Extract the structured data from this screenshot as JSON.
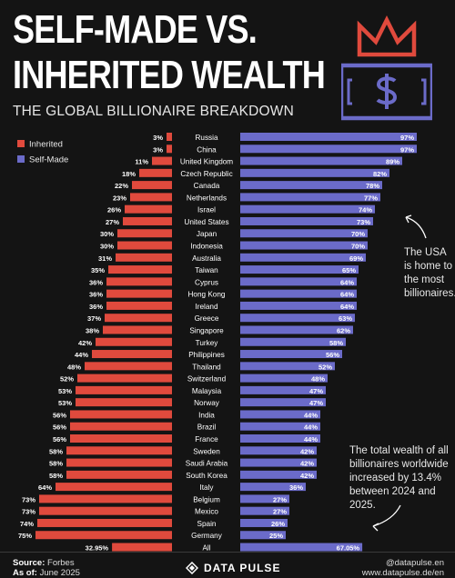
{
  "header": {
    "title_line1": "SELF-MADE VS.",
    "title_line2": "INHERITED WEALTH",
    "subtitle": "THE GLOBAL BILLIONAIRE BREAKDOWN",
    "logo_icon": "crown-dollar-bill-icon"
  },
  "chart_data": {
    "type": "bar",
    "orientation": "horizontal-diverging",
    "legend": {
      "position": "top-left",
      "entries": [
        "Inherited",
        "Self-Made"
      ]
    },
    "colors": {
      "Inherited": "#e04a3d",
      "Self-Made": "#6b6bc9"
    },
    "unit": "%",
    "xlim": [
      0,
      100
    ],
    "categories": [
      "Russia",
      "China",
      "United Kingdom",
      "Czech Republic",
      "Canada",
      "Netherlands",
      "Israel",
      "United States",
      "Japan",
      "Indonesia",
      "Australia",
      "Taiwan",
      "Cyprus",
      "Hong Kong",
      "Ireland",
      "Greece",
      "Singapore",
      "Turkey",
      "Philippines",
      "Thailand",
      "Switzerland",
      "Malaysia",
      "Norway",
      "India",
      "Brazil",
      "France",
      "Sweden",
      "Saudi Arabia",
      "South Korea",
      "Italy",
      "Belgium",
      "Mexico",
      "Spain",
      "Germany",
      "All"
    ],
    "series": [
      {
        "name": "Inherited",
        "values": [
          3,
          3,
          11,
          18,
          22,
          23,
          26,
          27,
          30,
          30,
          31,
          35,
          36,
          36,
          36,
          37,
          38,
          42,
          44,
          48,
          52,
          53,
          53,
          56,
          56,
          56,
          58,
          58,
          58,
          64,
          73,
          73,
          74,
          75,
          32.95
        ],
        "labels": [
          "3%",
          "3%",
          "11%",
          "18%",
          "22%",
          "23%",
          "26%",
          "27%",
          "30%",
          "30%",
          "31%",
          "35%",
          "36%",
          "36%",
          "36%",
          "37%",
          "38%",
          "42%",
          "44%",
          "48%",
          "52%",
          "53%",
          "53%",
          "56%",
          "56%",
          "56%",
          "58%",
          "58%",
          "58%",
          "64%",
          "73%",
          "73%",
          "74%",
          "75%",
          "32.95%"
        ]
      },
      {
        "name": "Self-Made",
        "values": [
          97,
          97,
          89,
          82,
          78,
          77,
          74,
          73,
          70,
          70,
          69,
          65,
          64,
          64,
          64,
          63,
          62,
          58,
          56,
          52,
          48,
          47,
          47,
          44,
          44,
          44,
          42,
          42,
          42,
          36,
          27,
          27,
          26,
          25,
          67.05
        ],
        "labels": [
          "97%",
          "97%",
          "89%",
          "82%",
          "78%",
          "77%",
          "74%",
          "73%",
          "70%",
          "70%",
          "69%",
          "65%",
          "64%",
          "64%",
          "64%",
          "63%",
          "62%",
          "58%",
          "56%",
          "52%",
          "48%",
          "47%",
          "47%",
          "44%",
          "44%",
          "44%",
          "42%",
          "42%",
          "42%",
          "36%",
          "27%",
          "27%",
          "26%",
          "25%",
          "67.05%"
        ]
      }
    ],
    "annotations": [
      {
        "target": "United States",
        "text": "The USA is home to the most billionaires."
      },
      {
        "target": "All",
        "text": "The total wealth of all billionaires worldwide increased by 13.4% between 2024 and 2025."
      }
    ]
  },
  "footer": {
    "source_label": "Source:",
    "source_value": "Forbes",
    "asof_label": "As of:",
    "asof_value": "June 2025",
    "brand": "DATA PULSE",
    "social_handle": "@datapulse.en",
    "website": "www.datapulse.de/en"
  }
}
